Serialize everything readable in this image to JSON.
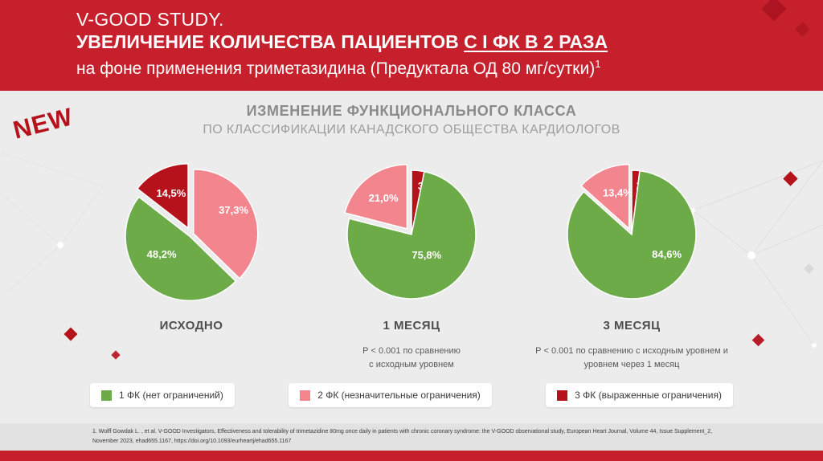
{
  "header": {
    "line1": "V-GOOD STUDY.",
    "line2_prefix": "УВЕЛИЧЕНИЕ КОЛИЧЕСТВА ПАЦИЕНТОВ ",
    "line2_underlined": "С I ФК В 2 РАЗА",
    "line3": "на фоне применения триметазидина (Предуктала ОД 80 мг/сутки)",
    "line3_sup": "1"
  },
  "new_badge": "NEW",
  "main_title": {
    "line1": "ИЗМЕНЕНИЕ ФУНКЦИОНАЛЬНОГО КЛАССА",
    "line2": "ПО КЛАССИФИКАЦИИ КАНАДСКОГО ОБЩЕСТВА КАРДИОЛОГОВ"
  },
  "colors": {
    "brand_red": "#c5202c",
    "green": "#6cab47",
    "pink": "#f3858f",
    "dark_red": "#b5121c",
    "background": "#ececec"
  },
  "chart_data": [
    {
      "type": "pie",
      "title": "ИСХОДНО",
      "legend_position": "bottom",
      "slices": [
        {
          "name": "2 ФК",
          "value": 37.3,
          "label": "37,3%",
          "color": "pink",
          "explode": 3,
          "ld": 60,
          "lr": 0.72
        },
        {
          "name": "1 ФК",
          "value": 48.2,
          "label": "48,2%",
          "color": "green",
          "explode": 3,
          "ld": 237,
          "lr": 0.52
        },
        {
          "name": "3 ФК",
          "value": 14.5,
          "label": "14,5%",
          "color": "red",
          "explode": 9
        }
      ]
    },
    {
      "type": "pie",
      "title": "1 МЕСЯЦ",
      "note_line1": "Р < 0.001 по сравнению",
      "note_line2": "с исходным уровнем",
      "slices": [
        {
          "name": "3 ФК",
          "value": 3.2,
          "label": "3,2%",
          "color": "red",
          "explode": 0
        },
        {
          "name": "1 ФК",
          "value": 75.8,
          "label": "75,8%",
          "color": "green",
          "explode": 0,
          "ld": 144,
          "lr": 0.4
        },
        {
          "name": "2 ФК",
          "value": 21.0,
          "label": "21,0%",
          "color": "pink",
          "explode": 9
        }
      ]
    },
    {
      "type": "pie",
      "title": "3 МЕСЯЦ",
      "note_line1": "Р < 0.001 по сравнению с исходным уровнем и",
      "note_line2": "уровнем через 1 месяц",
      "slices": [
        {
          "name": "3 ФК",
          "value": 2.0,
          "label": "2,0%",
          "color": "red",
          "explode": 0
        },
        {
          "name": "1 ФК",
          "value": 84.6,
          "label": "84,6%",
          "color": "green",
          "explode": 0,
          "ld": 120,
          "lr": 0.63
        },
        {
          "name": "2 ФК",
          "value": 13.4,
          "label": "13,4%",
          "color": "pink",
          "explode": 8,
          "ld": 342,
          "lr": 0.58
        }
      ]
    }
  ],
  "legend": [
    {
      "label": "1 ФК (нет ограничений)",
      "color": "green"
    },
    {
      "label": "2 ФК (незначительные ограничения)",
      "color": "pink"
    },
    {
      "label": "3 ФК (выраженные ограничения)",
      "color": "red"
    }
  ],
  "footnote": "1. Wolff Gowdak L. , et al.  V-GOOD Investigators, Effectiveness and tolerability of trimetazidine 80mg once daily in patients with chronic coronary syndrome: the V-GOOD observational study, European Heart Journal, Volume 44, Issue Supplement_2, November 2023, ehad655.1167, https://doi.org/10.1093/eurheartj/ehad655.1167"
}
